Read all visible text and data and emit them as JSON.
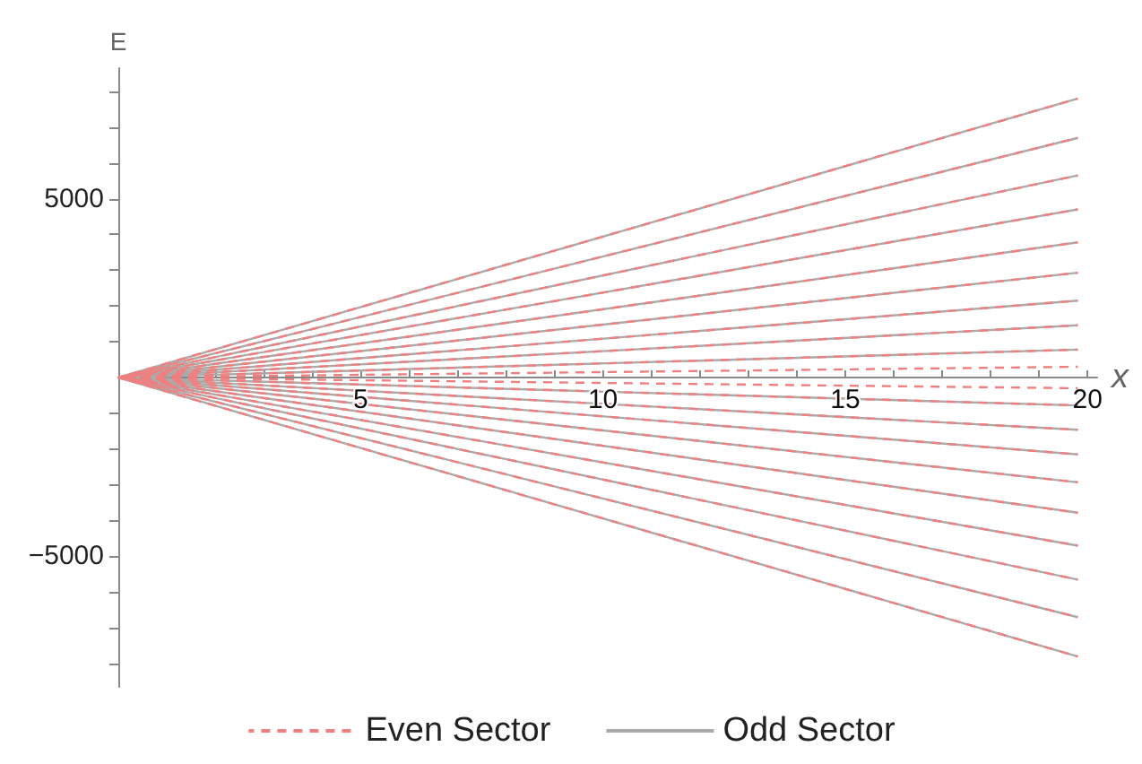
{
  "chart_data": {
    "type": "line",
    "xlabel": "x",
    "ylabel": "E",
    "xlim": [
      0,
      20.2
    ],
    "ylim": [
      -8650,
      8650
    ],
    "x": [
      0,
      19.8
    ],
    "xticks": [
      {
        "value": 1,
        "label": null
      },
      {
        "value": 2,
        "label": null
      },
      {
        "value": 3,
        "label": null
      },
      {
        "value": 4,
        "label": null
      },
      5,
      {
        "value": 6,
        "label": null
      },
      {
        "value": 7,
        "label": null
      },
      {
        "value": 8,
        "label": null
      },
      {
        "value": 9,
        "label": null
      },
      10,
      {
        "value": 11,
        "label": null
      },
      {
        "value": 12,
        "label": null
      },
      {
        "value": 13,
        "label": null
      },
      {
        "value": 14,
        "label": null
      },
      15,
      {
        "value": 16,
        "label": null
      },
      {
        "value": 17,
        "label": null
      },
      {
        "value": 18,
        "label": null
      },
      {
        "value": 19,
        "label": null
      },
      20
    ],
    "yticks": [
      {
        "value": -8000,
        "label": null
      },
      {
        "value": -7000,
        "label": null
      },
      {
        "value": -6000,
        "label": null
      },
      -5000,
      {
        "value": -4000,
        "label": null
      },
      {
        "value": -3000,
        "label": null
      },
      {
        "value": -2000,
        "label": null
      },
      {
        "value": -1000,
        "label": null
      },
      {
        "value": 1000,
        "label": null
      },
      {
        "value": 2000,
        "label": null
      },
      {
        "value": 3000,
        "label": null
      },
      {
        "value": 4000,
        "label": null
      },
      5000,
      {
        "value": 6000,
        "label": null
      },
      {
        "value": 7000,
        "label": null
      },
      {
        "value": 8000,
        "label": null
      }
    ],
    "legend": "bottom",
    "grid": false,
    "marker": "none",
    "series": [
      {
        "name": "Even Sector",
        "color": "#f08080",
        "line_style": "dashed",
        "values": [
          0,
          7800
        ]
      },
      {
        "color": "#f08080",
        "line_style": "dashed",
        "values": [
          0,
          6700
        ]
      },
      {
        "color": "#f08080",
        "line_style": "dashed",
        "values": [
          0,
          5650
        ]
      },
      {
        "color": "#f08080",
        "line_style": "dashed",
        "values": [
          0,
          4700
        ]
      },
      {
        "color": "#f08080",
        "line_style": "dashed",
        "values": [
          0,
          3780
        ]
      },
      {
        "color": "#f08080",
        "line_style": "dashed",
        "values": [
          0,
          2930
        ]
      },
      {
        "color": "#f08080",
        "line_style": "dashed",
        "values": [
          0,
          2150
        ]
      },
      {
        "color": "#f08080",
        "line_style": "dashed",
        "values": [
          0,
          1460
        ]
      },
      {
        "color": "#f08080",
        "line_style": "dashed",
        "values": [
          0,
          780
        ]
      },
      {
        "color": "#f08080",
        "line_style": "dashed",
        "values": [
          0,
          300
        ]
      },
      {
        "color": "#f08080",
        "line_style": "dashed",
        "values": [
          0,
          -300
        ]
      },
      {
        "color": "#f08080",
        "line_style": "dashed",
        "values": [
          0,
          -780
        ]
      },
      {
        "color": "#f08080",
        "line_style": "dashed",
        "values": [
          0,
          -1460
        ]
      },
      {
        "color": "#f08080",
        "line_style": "dashed",
        "values": [
          0,
          -2150
        ]
      },
      {
        "color": "#f08080",
        "line_style": "dashed",
        "values": [
          0,
          -2930
        ]
      },
      {
        "color": "#f08080",
        "line_style": "dashed",
        "values": [
          0,
          -3780
        ]
      },
      {
        "color": "#f08080",
        "line_style": "dashed",
        "values": [
          0,
          -4700
        ]
      },
      {
        "color": "#f08080",
        "line_style": "dashed",
        "values": [
          0,
          -5650
        ]
      },
      {
        "color": "#f08080",
        "line_style": "dashed",
        "values": [
          0,
          -6700
        ]
      },
      {
        "color": "#f08080",
        "line_style": "dashed",
        "values": [
          0,
          -7800
        ]
      },
      {
        "name": "Odd Sector",
        "color": "#aaaaaa",
        "line_style": "solid",
        "values": [
          0,
          7800
        ]
      },
      {
        "color": "#aaaaaa",
        "line_style": "solid",
        "values": [
          0,
          6700
        ]
      },
      {
        "color": "#aaaaaa",
        "line_style": "solid",
        "values": [
          0,
          5650
        ]
      },
      {
        "color": "#aaaaaa",
        "line_style": "solid",
        "values": [
          0,
          4700
        ]
      },
      {
        "color": "#aaaaaa",
        "line_style": "solid",
        "values": [
          0,
          3780
        ]
      },
      {
        "color": "#aaaaaa",
        "line_style": "solid",
        "values": [
          0,
          2930
        ]
      },
      {
        "color": "#aaaaaa",
        "line_style": "solid",
        "values": [
          0,
          2150
        ]
      },
      {
        "color": "#aaaaaa",
        "line_style": "solid",
        "values": [
          0,
          1460
        ]
      },
      {
        "color": "#aaaaaa",
        "line_style": "solid",
        "values": [
          0,
          780
        ]
      },
      {
        "color": "#aaaaaa",
        "line_style": "solid",
        "values": [
          0,
          -780
        ]
      },
      {
        "color": "#aaaaaa",
        "line_style": "solid",
        "values": [
          0,
          -1460
        ]
      },
      {
        "color": "#aaaaaa",
        "line_style": "solid",
        "values": [
          0,
          -2150
        ]
      },
      {
        "color": "#aaaaaa",
        "line_style": "solid",
        "values": [
          0,
          -2930
        ]
      },
      {
        "color": "#aaaaaa",
        "line_style": "solid",
        "values": [
          0,
          -3780
        ]
      },
      {
        "color": "#aaaaaa",
        "line_style": "solid",
        "values": [
          0,
          -4700
        ]
      },
      {
        "color": "#aaaaaa",
        "line_style": "solid",
        "values": [
          0,
          -5650
        ]
      },
      {
        "color": "#aaaaaa",
        "line_style": "solid",
        "values": [
          0,
          -6700
        ]
      },
      {
        "color": "#aaaaaa",
        "line_style": "solid",
        "values": [
          0,
          -7800
        ]
      }
    ]
  }
}
